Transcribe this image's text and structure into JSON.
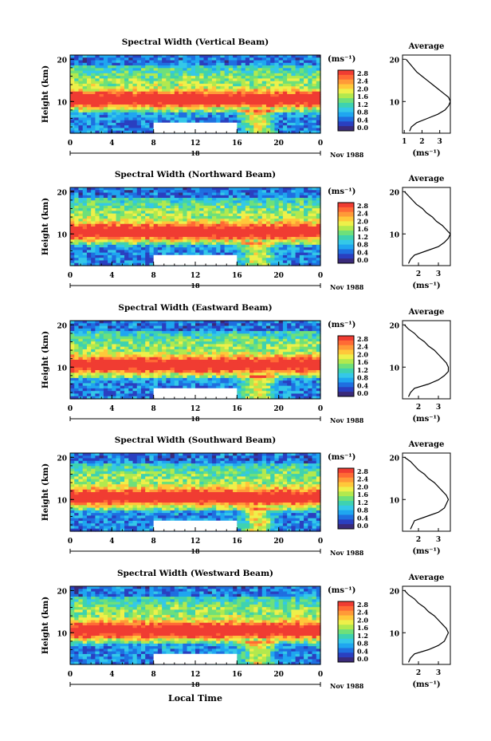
{
  "figure": {
    "x_axis_label": "Local Time",
    "date_label": "Nov 1988",
    "day_label": "18",
    "colorbar_unit": "(ms⁻¹)",
    "colorbar_ticks": [
      "2.8",
      "2.4",
      "2.0",
      "1.6",
      "1.2",
      "0.8",
      "0.4",
      "0.0"
    ],
    "colormap": [
      "#3a2a7a",
      "#2a3fc0",
      "#1f6fe0",
      "#1fa6f0",
      "#34c8e8",
      "#3ed2b0",
      "#6ee07a",
      "#b2e94e",
      "#eef04a",
      "#ffc83a",
      "#ff9a38",
      "#ff6a35",
      "#f03c32"
    ],
    "x_ticks": [
      "0",
      "4",
      "8",
      "12",
      "16",
      "20",
      "0"
    ],
    "y_ticks": [
      "20",
      "10"
    ],
    "y_axis_label": "Height (km)",
    "avg_title": "Average",
    "avg_unit": "(ms⁻¹)"
  },
  "chart_data": [
    {
      "type": "heatmap",
      "title": "Spectral Width (Vertical Beam)",
      "xlabel": "Local Time",
      "ylabel": "Height (km)",
      "x_range_hours": [
        0,
        24
      ],
      "y_range_km": [
        2.5,
        21
      ],
      "z_range_ms": [
        0.0,
        3.0
      ],
      "data_gap_hours": [
        8,
        16
      ],
      "data_gap_height_km": [
        2.5,
        5
      ],
      "peak_width_height_km": 10,
      "average_profile": {
        "xlabel": "(ms⁻¹)",
        "x_ticks": [
          "1",
          "2",
          "3"
        ],
        "x_range": [
          0.9,
          3.6
        ],
        "height_km": [
          3,
          4,
          5,
          6,
          7,
          8,
          9,
          10,
          11,
          12,
          13,
          14,
          15,
          16,
          17,
          18,
          19,
          20
        ],
        "width_ms": [
          1.3,
          1.4,
          1.7,
          2.3,
          2.9,
          3.3,
          3.5,
          3.6,
          3.5,
          3.2,
          2.9,
          2.6,
          2.3,
          2.0,
          1.7,
          1.5,
          1.3,
          1.1
        ]
      }
    },
    {
      "type": "heatmap",
      "title": "Spectral Width (Northward Beam)",
      "xlabel": "Local Time",
      "ylabel": "Height (km)",
      "x_range_hours": [
        0,
        24
      ],
      "y_range_km": [
        2.5,
        21
      ],
      "z_range_ms": [
        0.0,
        3.0
      ],
      "data_gap_hours": [
        8,
        16
      ],
      "data_gap_height_km": [
        2.5,
        5
      ],
      "peak_width_height_km": 10,
      "average_profile": {
        "xlabel": "(ms⁻¹)",
        "x_ticks": [
          "2",
          "3"
        ],
        "x_range": [
          1.2,
          3.6
        ],
        "height_km": [
          3,
          4,
          5,
          6,
          7,
          8,
          9,
          10,
          11,
          12,
          13,
          14,
          15,
          16,
          17,
          18,
          19,
          20
        ],
        "width_ms": [
          1.5,
          1.6,
          1.8,
          2.4,
          3.0,
          3.3,
          3.5,
          3.6,
          3.4,
          3.2,
          2.9,
          2.7,
          2.4,
          2.2,
          1.9,
          1.7,
          1.5,
          1.3
        ]
      }
    },
    {
      "type": "heatmap",
      "title": "Spectral Width (Eastward Beam)",
      "xlabel": "Local Time",
      "ylabel": "Height (km)",
      "x_range_hours": [
        0,
        24
      ],
      "y_range_km": [
        2.5,
        21
      ],
      "z_range_ms": [
        0.0,
        3.0
      ],
      "data_gap_hours": [
        8,
        16
      ],
      "data_gap_height_km": [
        2.5,
        5
      ],
      "peak_width_height_km": 10,
      "average_profile": {
        "xlabel": "(ms⁻¹)",
        "x_ticks": [
          "2",
          "3"
        ],
        "x_range": [
          1.2,
          3.6
        ],
        "height_km": [
          3,
          4,
          5,
          6,
          7,
          8,
          9,
          10,
          11,
          12,
          13,
          14,
          15,
          16,
          17,
          18,
          19,
          20
        ],
        "width_ms": [
          1.5,
          1.6,
          1.8,
          2.5,
          3.0,
          3.3,
          3.5,
          3.5,
          3.4,
          3.2,
          3.0,
          2.8,
          2.5,
          2.3,
          2.0,
          1.8,
          1.5,
          1.3
        ]
      }
    },
    {
      "type": "heatmap",
      "title": "Spectral Width (Southward Beam)",
      "xlabel": "Local Time",
      "ylabel": "Height (km)",
      "x_range_hours": [
        0,
        24
      ],
      "y_range_km": [
        2.5,
        21
      ],
      "z_range_ms": [
        0.0,
        3.0
      ],
      "data_gap_hours": [
        8,
        16
      ],
      "data_gap_height_km": [
        2.5,
        5
      ],
      "peak_width_height_km": 10,
      "average_profile": {
        "xlabel": "(ms⁻¹)",
        "x_ticks": [
          "2",
          "3"
        ],
        "x_range": [
          1.2,
          3.6
        ],
        "height_km": [
          3,
          4,
          5,
          6,
          7,
          8,
          9,
          10,
          11,
          12,
          13,
          14,
          15,
          16,
          17,
          18,
          19,
          20
        ],
        "width_ms": [
          1.6,
          1.7,
          1.8,
          2.4,
          3.0,
          3.3,
          3.4,
          3.5,
          3.4,
          3.2,
          3.0,
          2.8,
          2.5,
          2.3,
          2.0,
          1.8,
          1.6,
          1.3
        ]
      }
    },
    {
      "type": "heatmap",
      "title": "Spectral Width (Westward Beam)",
      "xlabel": "Local Time",
      "ylabel": "Height (km)",
      "x_range_hours": [
        0,
        24
      ],
      "y_range_km": [
        2.5,
        21
      ],
      "z_range_ms": [
        0.0,
        3.0
      ],
      "data_gap_hours": [
        8,
        16
      ],
      "data_gap_height_km": [
        2.5,
        5
      ],
      "peak_width_height_km": 10,
      "average_profile": {
        "xlabel": "(ms⁻¹)",
        "x_ticks": [
          "2",
          "3"
        ],
        "x_range": [
          1.2,
          3.6
        ],
        "height_km": [
          3,
          4,
          5,
          6,
          7,
          8,
          9,
          10,
          11,
          12,
          13,
          14,
          15,
          16,
          17,
          18,
          19,
          20
        ],
        "width_ms": [
          1.5,
          1.6,
          1.8,
          2.5,
          3.0,
          3.3,
          3.4,
          3.5,
          3.4,
          3.2,
          3.0,
          2.8,
          2.5,
          2.3,
          2.0,
          1.8,
          1.5,
          1.3
        ]
      }
    }
  ]
}
